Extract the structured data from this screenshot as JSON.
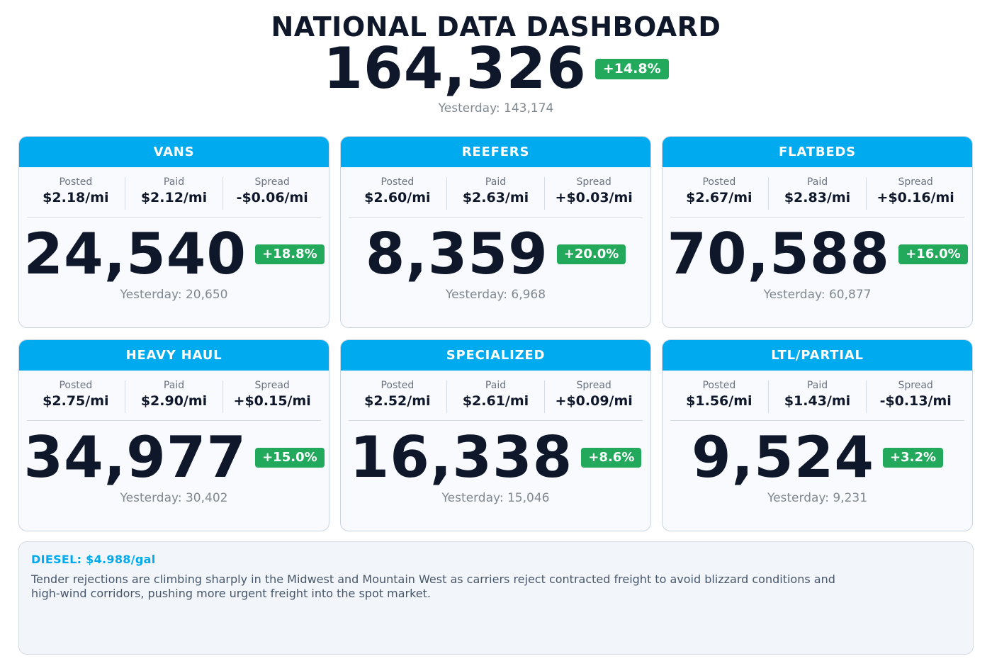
{
  "header": {
    "title": "NATIONAL DATA DASHBOARD",
    "total": "164,326",
    "change": "+14.8%",
    "yesterday": "Yesterday: 143,174"
  },
  "colors": {
    "accent": "#00aaef",
    "positive": "#22a95b",
    "text": "#0f172a",
    "muted": "#808890"
  },
  "cards": [
    {
      "title": "VANS",
      "posted_label": "Posted",
      "posted": "$2.18/mi",
      "paid_label": "Paid",
      "paid": "$2.12/mi",
      "spread_label": "Spread",
      "spread": "-$0.06/mi",
      "count": "24,540",
      "change": "+18.8%",
      "yesterday": "Yesterday: 20,650"
    },
    {
      "title": "REEFERS",
      "posted_label": "Posted",
      "posted": "$2.60/mi",
      "paid_label": "Paid",
      "paid": "$2.63/mi",
      "spread_label": "Spread",
      "spread": "+$0.03/mi",
      "count": "8,359",
      "change": "+20.0%",
      "yesterday": "Yesterday: 6,968"
    },
    {
      "title": "FLATBEDS",
      "posted_label": "Posted",
      "posted": "$2.67/mi",
      "paid_label": "Paid",
      "paid": "$2.83/mi",
      "spread_label": "Spread",
      "spread": "+$0.16/mi",
      "count": "70,588",
      "change": "+16.0%",
      "yesterday": "Yesterday: 60,877"
    },
    {
      "title": "HEAVY HAUL",
      "posted_label": "Posted",
      "posted": "$2.75/mi",
      "paid_label": "Paid",
      "paid": "$2.90/mi",
      "spread_label": "Spread",
      "spread": "+$0.15/mi",
      "count": "34,977",
      "change": "+15.0%",
      "yesterday": "Yesterday: 30,402"
    },
    {
      "title": "SPECIALIZED",
      "posted_label": "Posted",
      "posted": "$2.52/mi",
      "paid_label": "Paid",
      "paid": "$2.61/mi",
      "spread_label": "Spread",
      "spread": "+$0.09/mi",
      "count": "16,338",
      "change": "+8.6%",
      "yesterday": "Yesterday: 15,046"
    },
    {
      "title": "LTL/PARTIAL",
      "posted_label": "Posted",
      "posted": "$1.56/mi",
      "paid_label": "Paid",
      "paid": "$1.43/mi",
      "spread_label": "Spread",
      "spread": "-$0.13/mi",
      "count": "9,524",
      "change": "+3.2%",
      "yesterday": "Yesterday: 9,231"
    }
  ],
  "news": {
    "diesel": "DIESEL:  $4.988/gal",
    "text": "Tender rejections are climbing sharply in the Midwest and Mountain West as carriers reject contracted freight to avoid blizzard conditions and high-wind corridors, pushing more urgent freight into the spot market."
  }
}
